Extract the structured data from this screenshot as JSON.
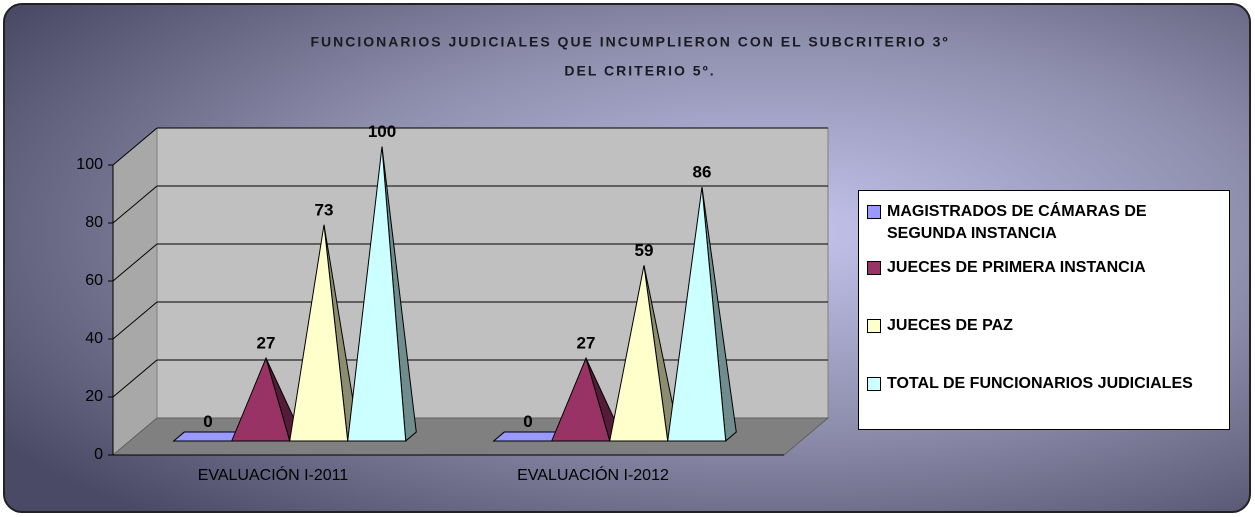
{
  "chart_data": {
    "type": "pyramid3d",
    "title": [
      "FUNCIONARIOS JUDICIALES QUE INCUMPLIERON CON EL SUBCRITERIO 3º",
      "DEL CRITERIO 5º."
    ],
    "categories": [
      "EVALUACIÓN I-2011",
      "EVALUACIÓN I-2012"
    ],
    "series": [
      {
        "name": "MAGISTRADOS DE CÁMARAS DE SEGUNDA INSTANCIA",
        "color": "#9999ff",
        "values": [
          0,
          0
        ]
      },
      {
        "name": "JUECES DE PRIMERA INSTANCIA",
        "color": "#993366",
        "values": [
          27,
          27
        ]
      },
      {
        "name": "JUECES DE PAZ",
        "color": "#ffffcc",
        "values": [
          73,
          59
        ]
      },
      {
        "name": "TOTAL DE FUNCIONARIOS JUDICIALES",
        "color": "#ccffff",
        "values": [
          100,
          86
        ]
      }
    ],
    "ylim": [
      0,
      100
    ],
    "yticks": [
      0,
      20,
      40,
      60,
      80,
      100
    ],
    "grid": true,
    "legend": "right"
  }
}
